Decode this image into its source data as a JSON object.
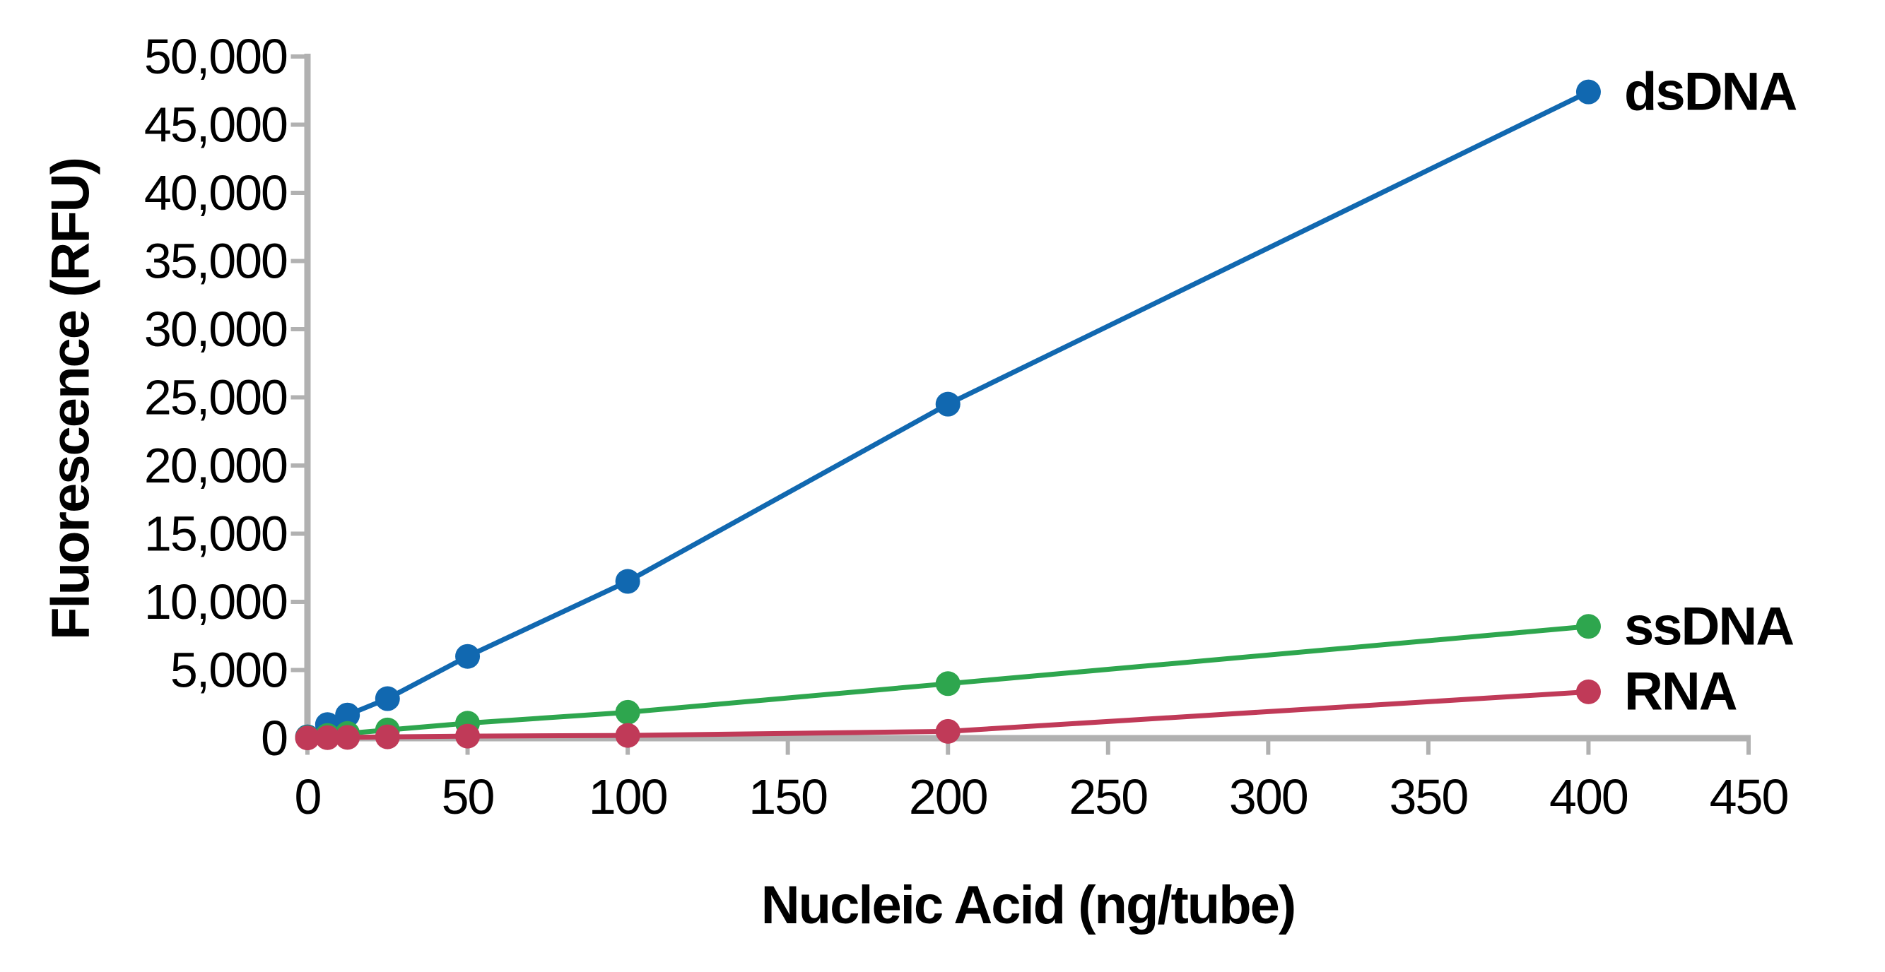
{
  "chart_data": {
    "type": "line",
    "title": "",
    "xlabel": "Nucleic Acid (ng/tube)",
    "ylabel": "Fluorescence (RFU)",
    "xlim": [
      0,
      450
    ],
    "ylim": [
      0,
      50000
    ],
    "xticks": [
      0,
      50,
      100,
      150,
      200,
      250,
      300,
      350,
      400,
      450
    ],
    "xtick_labels": [
      "0",
      "50",
      "100",
      "150",
      "200",
      "250",
      "300",
      "350",
      "400",
      "450"
    ],
    "yticks": [
      0,
      5000,
      10000,
      15000,
      20000,
      25000,
      30000,
      35000,
      40000,
      45000,
      50000
    ],
    "ytick_labels": [
      "0",
      "5,000",
      "10,000",
      "15,000",
      "20,000",
      "25,000",
      "30,000",
      "35,000",
      "40,000",
      "45,000",
      "50,000"
    ],
    "grid": false,
    "legend_position": "inline-end-of-line-labels",
    "axis_color": "#b1b1b1",
    "text_color": "#000000",
    "x": [
      0,
      6.25,
      12.5,
      25,
      50,
      100,
      200,
      400
    ],
    "series": [
      {
        "name": "dsDNA",
        "color": "#1168b0",
        "values": [
          100,
          1000,
          1700,
          2900,
          6000,
          11500,
          24500,
          47400
        ]
      },
      {
        "name": "ssDNA",
        "color": "#2ea64e",
        "values": [
          50,
          200,
          350,
          600,
          1100,
          1900,
          4000,
          8200
        ]
      },
      {
        "name": "RNA",
        "color": "#c03a58",
        "values": [
          20,
          40,
          60,
          100,
          150,
          200,
          500,
          3400
        ]
      }
    ]
  }
}
